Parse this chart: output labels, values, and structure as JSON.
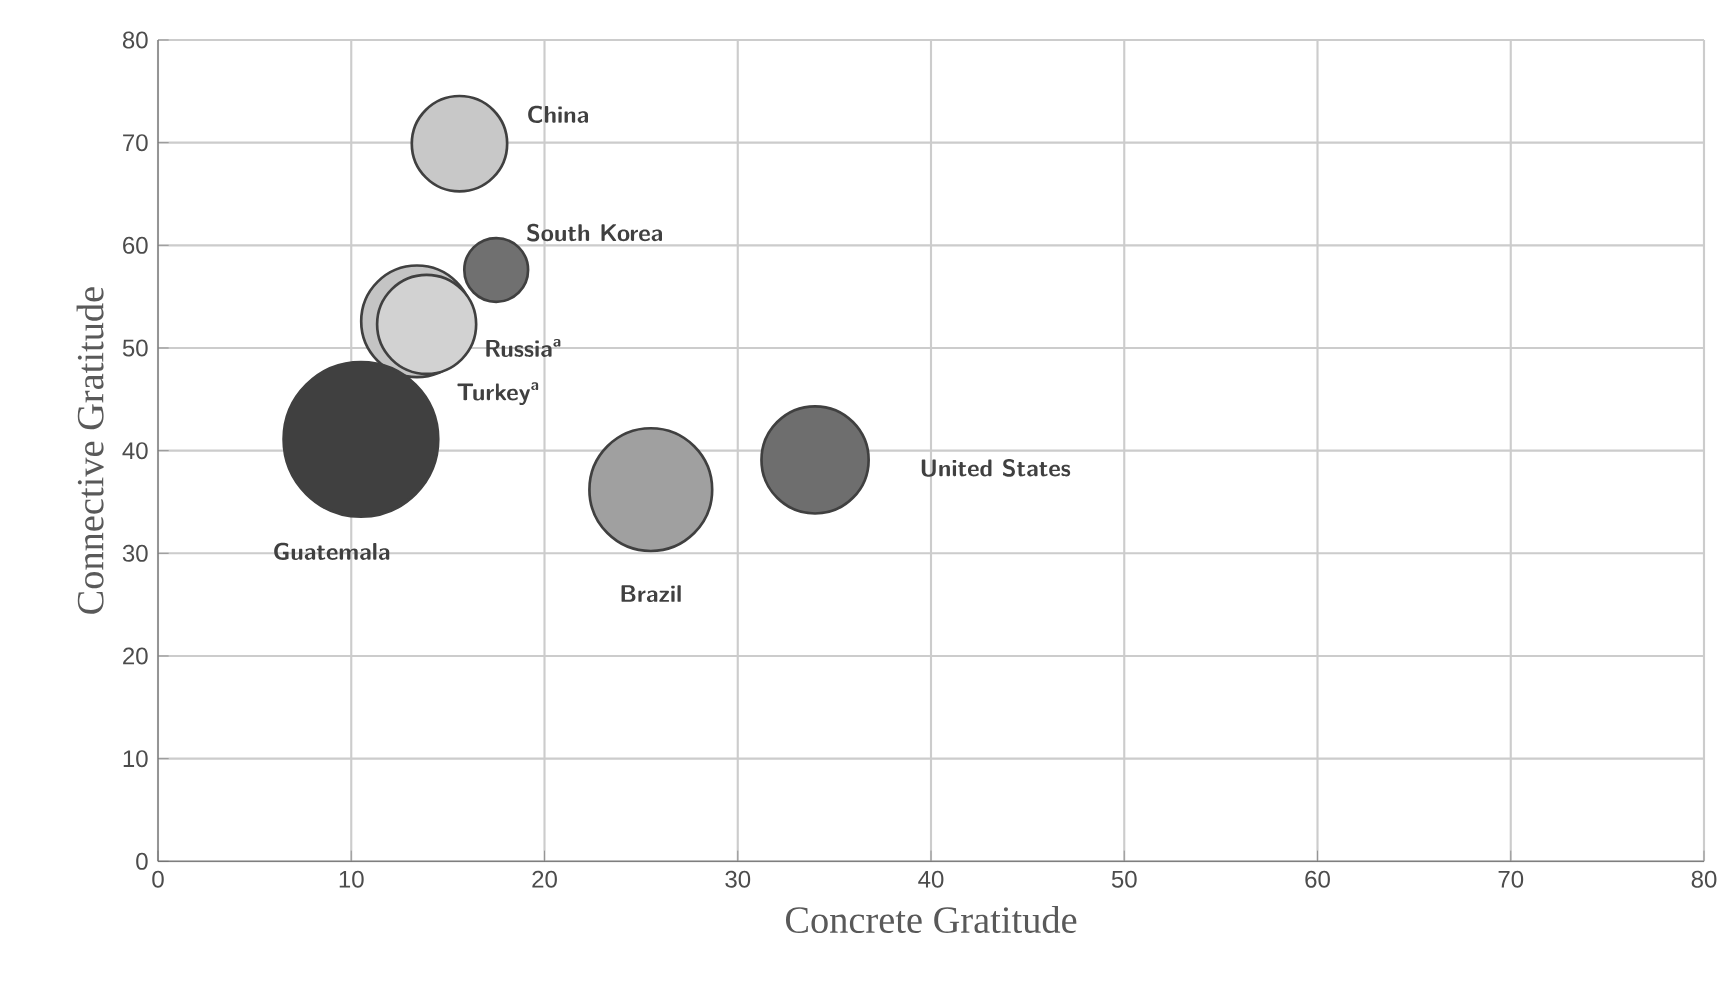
{
  "chart_data": {
    "type": "bubble",
    "xlabel": "Concrete Gratitude",
    "ylabel": "Connective Gratitude",
    "xlim": [
      0,
      80
    ],
    "ylim": [
      0,
      80
    ],
    "xticks": [
      0,
      10,
      20,
      30,
      40,
      50,
      60,
      70,
      80
    ],
    "yticks": [
      0,
      10,
      20,
      30,
      40,
      50,
      60,
      70,
      80
    ],
    "grid": true,
    "series": [
      {
        "name": "China",
        "color": "#c8c8c8",
        "x": [
          15.6
        ],
        "values": [
          69.9
        ],
        "sizes": [
          0.38
        ]
      },
      {
        "name": "South Korea",
        "color": "#707070",
        "x": [
          17.5
        ],
        "values": [
          57.6
        ],
        "sizes": [
          0.17
        ]
      },
      {
        "name": "Russia$^{a}$",
        "color": "#c4c4c4",
        "x": [
          13.4
        ],
        "values": [
          52.6
        ],
        "sizes": [
          0.52
        ]
      },
      {
        "name": "Turkey$^{a}$",
        "color": "#d2d2d2",
        "x": [
          13.9
        ],
        "values": [
          52.3
        ],
        "sizes": [
          0.41
        ]
      },
      {
        "name": "Guatemala",
        "color": "#404040",
        "x": [
          10.5
        ],
        "values": [
          41.1
        ],
        "sizes": [
          1
        ]
      },
      {
        "name": "Brazil",
        "color": "#a0a0a0",
        "x": [
          25.5
        ],
        "values": [
          36.2
        ],
        "sizes": [
          0.63
        ]
      },
      {
        "name": "United States",
        "color": "#6e6e6e",
        "x": [
          34.0
        ],
        "values": [
          39.1
        ],
        "sizes": [
          0.48
        ]
      }
    ]
  }
}
